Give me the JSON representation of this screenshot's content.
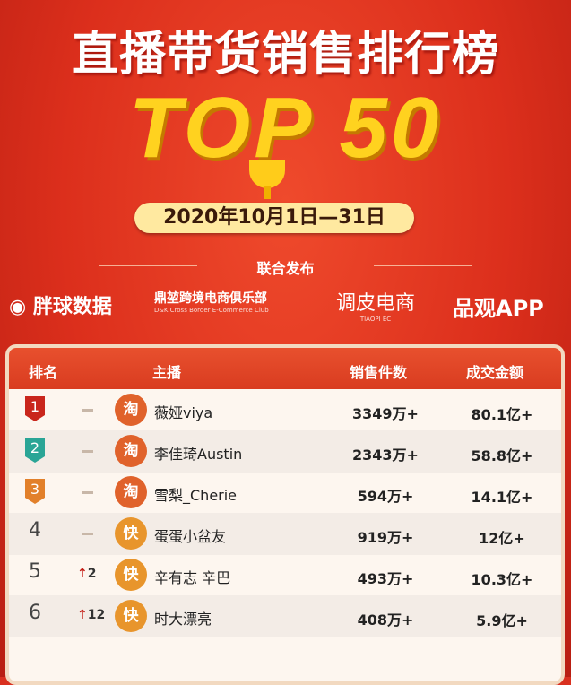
{
  "title": "直播带货销售排行榜",
  "subtitle": "TOP 50",
  "date": "2020年10月1日—31日",
  "published": "联合发布",
  "logos": [
    {
      "name": "胖球数据"
    },
    {
      "name": "鼎堃跨境电商俱乐部",
      "sub": "D&K Cross Border E-Commerce Club"
    },
    {
      "name": "调皮电商",
      "sub": "TIAOPI EC"
    },
    {
      "name": "品观APP"
    }
  ],
  "table": {
    "headers": [
      "排名",
      "主播",
      "销售件数",
      "成交金额"
    ],
    "rows": [
      {
        "rank": "1",
        "change": "—",
        "platform": "淘",
        "anchor": "薇娅viya",
        "sales": "3349万+",
        "amount": "80.1亿+",
        "badge": "#c9261c",
        "pcolor": "#e0622b"
      },
      {
        "rank": "2",
        "change": "—",
        "platform": "淘",
        "anchor": "李佳琦Austin",
        "sales": "2343万+",
        "amount": "58.8亿+",
        "badge": "#2aa596",
        "pcolor": "#e0622b"
      },
      {
        "rank": "3",
        "change": "—",
        "platform": "淘",
        "anchor": "雪梨_Cherie",
        "sales": "594万+",
        "amount": "14.1亿+",
        "badge": "#e2802a",
        "pcolor": "#e0622b"
      },
      {
        "rank": "4",
        "change": "—",
        "platform": "快",
        "anchor": "蛋蛋小盆友",
        "sales": "919万+",
        "amount": "12亿+",
        "badge": "",
        "pcolor": "#e8952c"
      },
      {
        "rank": "5",
        "change": "2",
        "platform": "快",
        "anchor": "辛有志 辛巴",
        "sales": "493万+",
        "amount": "10.3亿+",
        "badge": "",
        "pcolor": "#e8952c"
      },
      {
        "rank": "6",
        "change": "12",
        "platform": "快",
        "anchor": "时大漂亮",
        "sales": "408万+",
        "amount": "5.9亿+",
        "badge": "",
        "pcolor": "#e8952c"
      }
    ]
  }
}
